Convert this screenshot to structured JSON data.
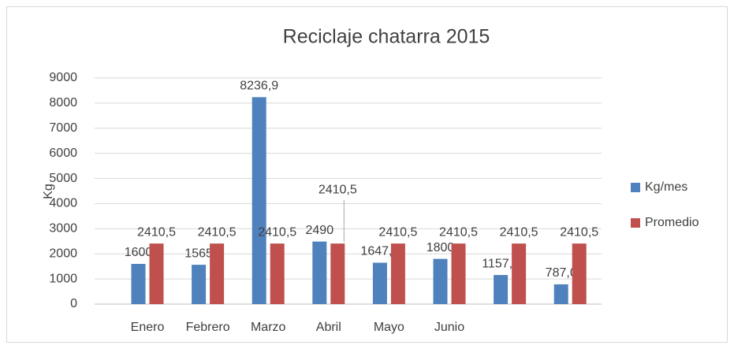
{
  "chart_data": {
    "type": "bar",
    "title": "Reciclaje  chatarra 2015",
    "y_label": "Kg",
    "categories": [
      "Enero",
      "Febrero",
      "Marzo",
      "Abril",
      "Mayo",
      "Junio",
      null,
      null
    ],
    "series": [
      {
        "name": "Kg/mes",
        "color": "#4f81bd",
        "values": [
          1600,
          1565,
          8236.9,
          2490,
          1647.1,
          1800,
          1157.7,
          787.0
        ],
        "value_labels": [
          "1600",
          "1565",
          "8236,9",
          "2490",
          "1647,1",
          "1800",
          "1157,7",
          "787,0"
        ]
      },
      {
        "name": "Promedio",
        "color": "#c0504d",
        "values": [
          2410.5,
          2410.5,
          2410.5,
          2410.5,
          2410.5,
          2410.5,
          2410.5,
          2410.5
        ],
        "value_labels": [
          "2410,5",
          "2410,5",
          "2410,5",
          "2410,5",
          "2410,5",
          "2410,5",
          "2410,5",
          "2410,5"
        ]
      }
    ],
    "ylim": [
      0,
      9000
    ],
    "yticks": [
      0,
      1000,
      2000,
      3000,
      4000,
      5000,
      6000,
      7000,
      8000,
      9000
    ],
    "grid": true,
    "legend": "right"
  }
}
